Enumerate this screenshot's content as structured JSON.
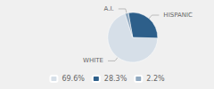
{
  "chart_data": {
    "type": "pie",
    "categories": [
      "WHITE",
      "HISPANIC",
      "A.I."
    ],
    "values": [
      69.6,
      28.3,
      2.2
    ],
    "value_labels": [
      "69.6%",
      "28.3%",
      "2.2%"
    ],
    "colors": [
      "#d6dfe8",
      "#2d5f8a",
      "#8fa8bf"
    ],
    "legend": "bottom"
  }
}
